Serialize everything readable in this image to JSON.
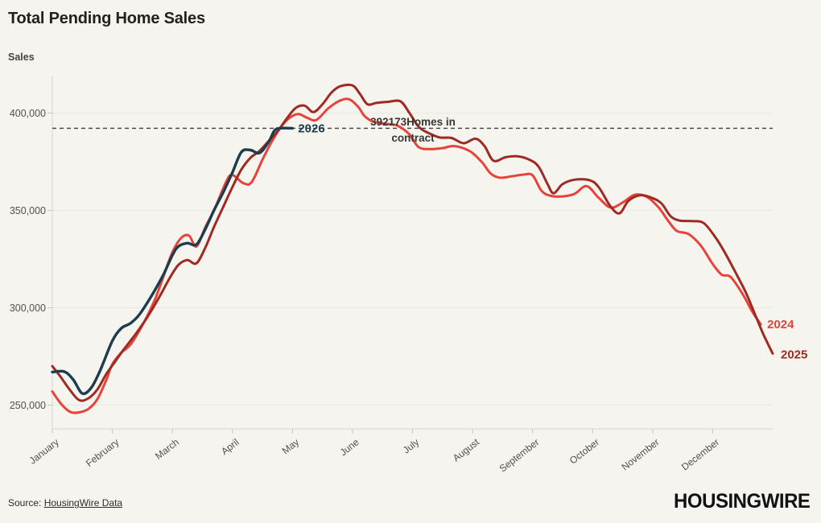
{
  "header": {
    "title": "Total Pending Home Sales"
  },
  "axis": {
    "y_title": "Sales"
  },
  "footer": {
    "source_prefix": "Source: ",
    "source_link_text": "HousingWire Data",
    "logo_text": "HOUSINGWIRE"
  },
  "colors": {
    "background": "#f5f4ee",
    "grid": "#eae7e0",
    "axis_line": "#d8d5cd",
    "tick": "#c9c6bf",
    "tick_label": "#53504b",
    "reference_line": "#3f3e3c",
    "annotation_text": "#3a3633",
    "series_2024": "#e8433a",
    "series_2025": "#9e2b23",
    "series_2026": "#1d3c4c"
  },
  "chart_data": {
    "type": "line",
    "title": "Total Pending Home Sales",
    "xlabel": "",
    "ylabel": "Sales",
    "grid": "horizontal-only",
    "legend_position": "inline-end-labels",
    "x_unit": "month (0 = Jan 1, 12 = Dec 31)",
    "x_categories": [
      "January",
      "February",
      "March",
      "April",
      "May",
      "June",
      "July",
      "August",
      "September",
      "October",
      "November",
      "December"
    ],
    "xlim_months": [
      0,
      12
    ],
    "ylim": [
      237800,
      419000
    ],
    "y_ticks": [
      {
        "value": 250000,
        "label": "250,000"
      },
      {
        "value": 300000,
        "label": "300,000"
      },
      {
        "value": 350000,
        "label": "350,000"
      },
      {
        "value": 400000,
        "label": "400,000"
      }
    ],
    "reference_line": {
      "value": 392173,
      "style": "dashed",
      "label": "392173 Homes in contract",
      "annotation_lines": [
        "392173Homes in",
        "contract"
      ],
      "annotation_anchor_month": 6.0
    },
    "series": [
      {
        "name": "2024",
        "color_key": "series_2024",
        "label_offset": [
          8,
          5
        ],
        "points": [
          [
            0,
            257000
          ],
          [
            0.15,
            250500
          ],
          [
            0.3,
            246500
          ],
          [
            0.45,
            246300
          ],
          [
            0.6,
            248000
          ],
          [
            0.75,
            253000
          ],
          [
            0.9,
            263000
          ],
          [
            1.0,
            271000
          ],
          [
            1.15,
            277000
          ],
          [
            1.3,
            281000
          ],
          [
            1.5,
            291000
          ],
          [
            1.7,
            303500
          ],
          [
            1.85,
            316000
          ],
          [
            2.0,
            328500
          ],
          [
            2.15,
            336000
          ],
          [
            2.28,
            337000
          ],
          [
            2.4,
            331500
          ],
          [
            2.55,
            341500
          ],
          [
            2.7,
            350500
          ],
          [
            2.9,
            365000
          ],
          [
            3.0,
            368200
          ],
          [
            3.18,
            364000
          ],
          [
            3.32,
            364500
          ],
          [
            3.5,
            376000
          ],
          [
            3.65,
            385000
          ],
          [
            3.8,
            392500
          ],
          [
            3.95,
            397500
          ],
          [
            4.1,
            399500
          ],
          [
            4.25,
            397500
          ],
          [
            4.4,
            396500
          ],
          [
            4.6,
            402500
          ],
          [
            4.8,
            406500
          ],
          [
            4.95,
            407000
          ],
          [
            5.1,
            403000
          ],
          [
            5.2,
            398500
          ],
          [
            5.35,
            395500
          ],
          [
            5.55,
            394500
          ],
          [
            5.75,
            393500
          ],
          [
            5.95,
            389000
          ],
          [
            6.1,
            382500
          ],
          [
            6.3,
            381500
          ],
          [
            6.5,
            382000
          ],
          [
            6.7,
            383000
          ],
          [
            6.95,
            380500
          ],
          [
            7.15,
            375000
          ],
          [
            7.3,
            369000
          ],
          [
            7.45,
            366800
          ],
          [
            7.65,
            367500
          ],
          [
            7.85,
            368400
          ],
          [
            8.0,
            368000
          ],
          [
            8.15,
            360000
          ],
          [
            8.3,
            357500
          ],
          [
            8.5,
            357200
          ],
          [
            8.7,
            358500
          ],
          [
            8.9,
            362500
          ],
          [
            9.1,
            356500
          ],
          [
            9.3,
            351500
          ],
          [
            9.5,
            354000
          ],
          [
            9.7,
            358000
          ],
          [
            9.9,
            357000
          ],
          [
            10.1,
            351500
          ],
          [
            10.25,
            345000
          ],
          [
            10.4,
            339500
          ],
          [
            10.6,
            337800
          ],
          [
            10.8,
            332000
          ],
          [
            11.0,
            322500
          ],
          [
            11.15,
            317000
          ],
          [
            11.3,
            315800
          ],
          [
            11.5,
            307000
          ],
          [
            11.65,
            298500
          ],
          [
            11.8,
            291500
          ]
        ]
      },
      {
        "name": "2025",
        "color_key": "series_2025",
        "label_offset": [
          10,
          6
        ],
        "points": [
          [
            0,
            270000
          ],
          [
            0.15,
            264000
          ],
          [
            0.3,
            257500
          ],
          [
            0.45,
            252500
          ],
          [
            0.6,
            253500
          ],
          [
            0.75,
            258000
          ],
          [
            0.9,
            266000
          ],
          [
            1.05,
            272500
          ],
          [
            1.2,
            279000
          ],
          [
            1.4,
            287000
          ],
          [
            1.6,
            296000
          ],
          [
            1.8,
            306500
          ],
          [
            1.95,
            315000
          ],
          [
            2.1,
            322000
          ],
          [
            2.25,
            324500
          ],
          [
            2.4,
            322800
          ],
          [
            2.55,
            331000
          ],
          [
            2.7,
            342000
          ],
          [
            2.85,
            352000
          ],
          [
            3.0,
            362000
          ],
          [
            3.15,
            371000
          ],
          [
            3.3,
            377000
          ],
          [
            3.45,
            380500
          ],
          [
            3.6,
            385500
          ],
          [
            3.75,
            390500
          ],
          [
            3.9,
            397000
          ],
          [
            4.05,
            402500
          ],
          [
            4.2,
            403800
          ],
          [
            4.35,
            400500
          ],
          [
            4.5,
            404500
          ],
          [
            4.65,
            410500
          ],
          [
            4.8,
            413800
          ],
          [
            5.0,
            414200
          ],
          [
            5.12,
            410000
          ],
          [
            5.25,
            404500
          ],
          [
            5.4,
            405200
          ],
          [
            5.6,
            405800
          ],
          [
            5.8,
            406000
          ],
          [
            5.95,
            400000
          ],
          [
            6.1,
            393000
          ],
          [
            6.25,
            390000
          ],
          [
            6.45,
            387500
          ],
          [
            6.65,
            387200
          ],
          [
            6.85,
            384500
          ],
          [
            7.05,
            386800
          ],
          [
            7.2,
            383000
          ],
          [
            7.35,
            375500
          ],
          [
            7.55,
            377300
          ],
          [
            7.75,
            377800
          ],
          [
            7.95,
            376000
          ],
          [
            8.1,
            372500
          ],
          [
            8.25,
            363500
          ],
          [
            8.35,
            358800
          ],
          [
            8.5,
            363500
          ],
          [
            8.7,
            365800
          ],
          [
            8.95,
            365500
          ],
          [
            9.1,
            362000
          ],
          [
            9.3,
            352000
          ],
          [
            9.45,
            348500
          ],
          [
            9.6,
            355000
          ],
          [
            9.8,
            357800
          ],
          [
            10.0,
            356300
          ],
          [
            10.15,
            353500
          ],
          [
            10.3,
            347000
          ],
          [
            10.45,
            344800
          ],
          [
            10.65,
            344500
          ],
          [
            10.85,
            343500
          ],
          [
            11.05,
            336000
          ],
          [
            11.2,
            328500
          ],
          [
            11.4,
            317000
          ],
          [
            11.55,
            308000
          ],
          [
            11.7,
            297000
          ],
          [
            11.85,
            286000
          ],
          [
            12.0,
            276500
          ]
        ]
      },
      {
        "name": "2026",
        "color_key": "series_2026",
        "label_offset": [
          7,
          5
        ],
        "points": [
          [
            0,
            267000
          ],
          [
            0.2,
            267200
          ],
          [
            0.35,
            263000
          ],
          [
            0.5,
            256000
          ],
          [
            0.65,
            259000
          ],
          [
            0.8,
            268000
          ],
          [
            1.0,
            283000
          ],
          [
            1.15,
            289500
          ],
          [
            1.3,
            292000
          ],
          [
            1.45,
            296500
          ],
          [
            1.65,
            306000
          ],
          [
            1.85,
            317000
          ],
          [
            2.0,
            327000
          ],
          [
            2.1,
            331500
          ],
          [
            2.25,
            333200
          ],
          [
            2.4,
            332500
          ],
          [
            2.55,
            340500
          ],
          [
            2.7,
            350500
          ],
          [
            2.85,
            359500
          ],
          [
            3.0,
            369500
          ],
          [
            3.15,
            380000
          ],
          [
            3.3,
            381000
          ],
          [
            3.45,
            379500
          ],
          [
            3.6,
            385000
          ],
          [
            3.7,
            391000
          ],
          [
            3.8,
            392173
          ],
          [
            4.0,
            392173
          ]
        ]
      }
    ]
  }
}
